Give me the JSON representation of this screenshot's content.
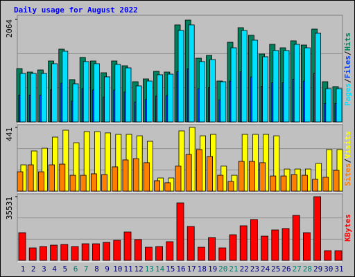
{
  "chart_data": [
    {
      "type": "bar",
      "title": "Daily usage for August 2022",
      "categories": [
        "1",
        "2",
        "3",
        "4",
        "5",
        "6",
        "7",
        "8",
        "9",
        "10",
        "11",
        "12",
        "13",
        "14",
        "15",
        "16",
        "17",
        "18",
        "19",
        "20",
        "21",
        "22",
        "23",
        "24",
        "25",
        "26",
        "27",
        "28",
        "29",
        "30",
        "31"
      ],
      "category_colors": [
        "#000080",
        "#000080",
        "#000080",
        "#000080",
        "#000080",
        "#00806e",
        "#00806e",
        "#000080",
        "#000080",
        "#000080",
        "#000080",
        "#000080",
        "#00806e",
        "#00806e",
        "#000080",
        "#000080",
        "#000080",
        "#000080",
        "#000080",
        "#00806e",
        "#00806e",
        "#000080",
        "#000080",
        "#000080",
        "#000080",
        "#000080",
        "#00806e",
        "#00806e",
        "#000080",
        "#000080",
        "#000080"
      ],
      "legend_separator": "/",
      "ylim": [
        0,
        2064
      ],
      "yticks": [
        2064
      ],
      "series": [
        {
          "name": "Hits",
          "color": "#00805c",
          "values": [
            1074,
            1004,
            1046,
            1227,
            1465,
            851,
            1298,
            1227,
            990,
            1227,
            1130,
            809,
            865,
            1018,
            1004,
            1953,
            2050,
            1283,
            1339,
            823,
            1604,
            1897,
            1744,
            1367,
            1562,
            1492,
            1632,
            1548,
            1869,
            809,
            711
          ]
        },
        {
          "name": "Files",
          "color": "#0040ff",
          "values": [
            540,
            540,
            540,
            645,
            780,
            420,
            670,
            645,
            500,
            640,
            600,
            400,
            450,
            520,
            530,
            1010,
            1070,
            670,
            690,
            445,
            820,
            1010,
            905,
            720,
            790,
            790,
            860,
            820,
            980,
            370,
            370
          ]
        },
        {
          "name": "Pages",
          "color": "#00e0ff",
          "values": [
            976,
            976,
            976,
            1172,
            1423,
            767,
            1214,
            1172,
            907,
            1158,
            1088,
            725,
            823,
            949,
            962,
            1841,
            1953,
            1214,
            1255,
            809,
            1492,
            1841,
            1646,
            1311,
            1437,
            1437,
            1562,
            1492,
            1785,
            670,
            670
          ]
        }
      ]
    },
    {
      "type": "bar",
      "ylim": [
        0,
        441
      ],
      "yticks": [
        441
      ],
      "series": [
        {
          "name": "Visits",
          "color": "#ffff00",
          "values": [
            182,
            278,
            297,
            374,
            422,
            335,
            412,
            412,
            403,
            393,
            393,
            383,
            345,
            91,
            91,
            417,
            441,
            383,
            393,
            173,
            110,
            393,
            393,
            393,
            383,
            153,
            153,
            153,
            192,
            288,
            288
          ]
        },
        {
          "name": "Sites",
          "color": "#ff8000",
          "values": [
            134,
            182,
            134,
            182,
            187,
            110,
            110,
            120,
            115,
            168,
            216,
            225,
            197,
            72,
            58,
            173,
            254,
            288,
            240,
            110,
            67,
            206,
            206,
            197,
            105,
            105,
            115,
            110,
            82,
            96,
            144
          ]
        }
      ]
    },
    {
      "type": "bar",
      "ylim": [
        0,
        35531
      ],
      "yticks": [
        35531
      ],
      "series": [
        {
          "name": "KBytes",
          "color": "#ff0000",
          "values": [
            15448,
            6952,
            7724,
            8497,
            8883,
            7724,
            9269,
            9269,
            10041,
            11200,
            15834,
            11586,
            7338,
            7724,
            10427,
            32055,
            18924,
            7338,
            12745,
            6952,
            14290,
            19310,
            22786,
            13517,
            16993,
            17765,
            25103,
            15448,
            35531,
            5407,
            5407
          ]
        }
      ]
    }
  ]
}
